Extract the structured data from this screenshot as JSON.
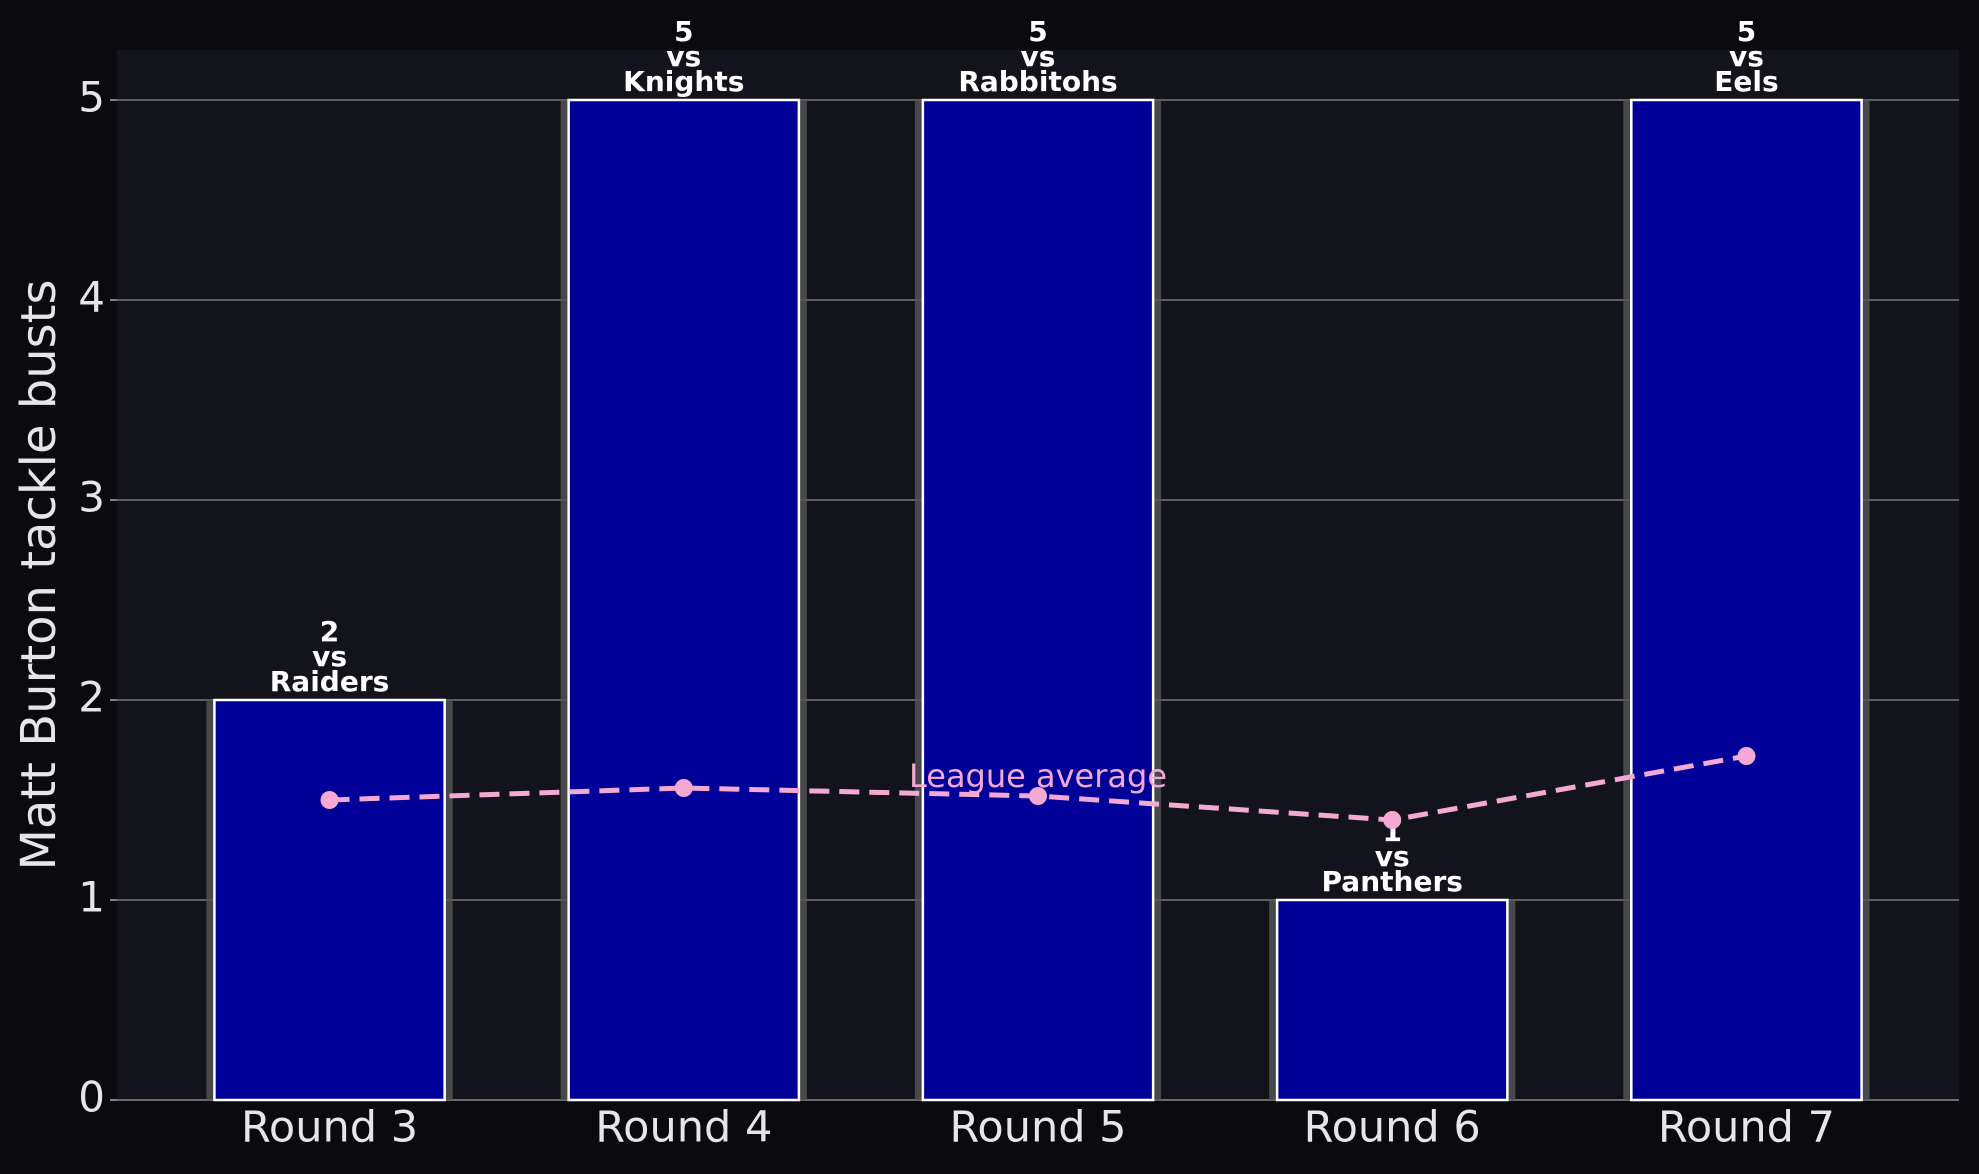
{
  "chart_data": {
    "type": "bar",
    "y_label": "Matt Burton tackle busts",
    "categories": [
      "Round 3",
      "Round 4",
      "Round 5",
      "Round 6",
      "Round 7"
    ],
    "values": [
      2,
      5,
      5,
      1,
      5
    ],
    "color": "#000099",
    "label_connector": "vs",
    "opponents": [
      "Raiders",
      "Knights",
      "Rabbitohs",
      "Panthers",
      "Eels"
    ],
    "series": [
      {
        "name": "League average",
        "type": "line",
        "color": "#f4a9d4",
        "values": [
          1.5,
          1.56,
          1.52,
          1.4,
          1.72
        ]
      }
    ],
    "ylim": [
      0,
      5.25
    ],
    "yticks": [
      0,
      1,
      2,
      3,
      4,
      5
    ],
    "grid": true
  }
}
